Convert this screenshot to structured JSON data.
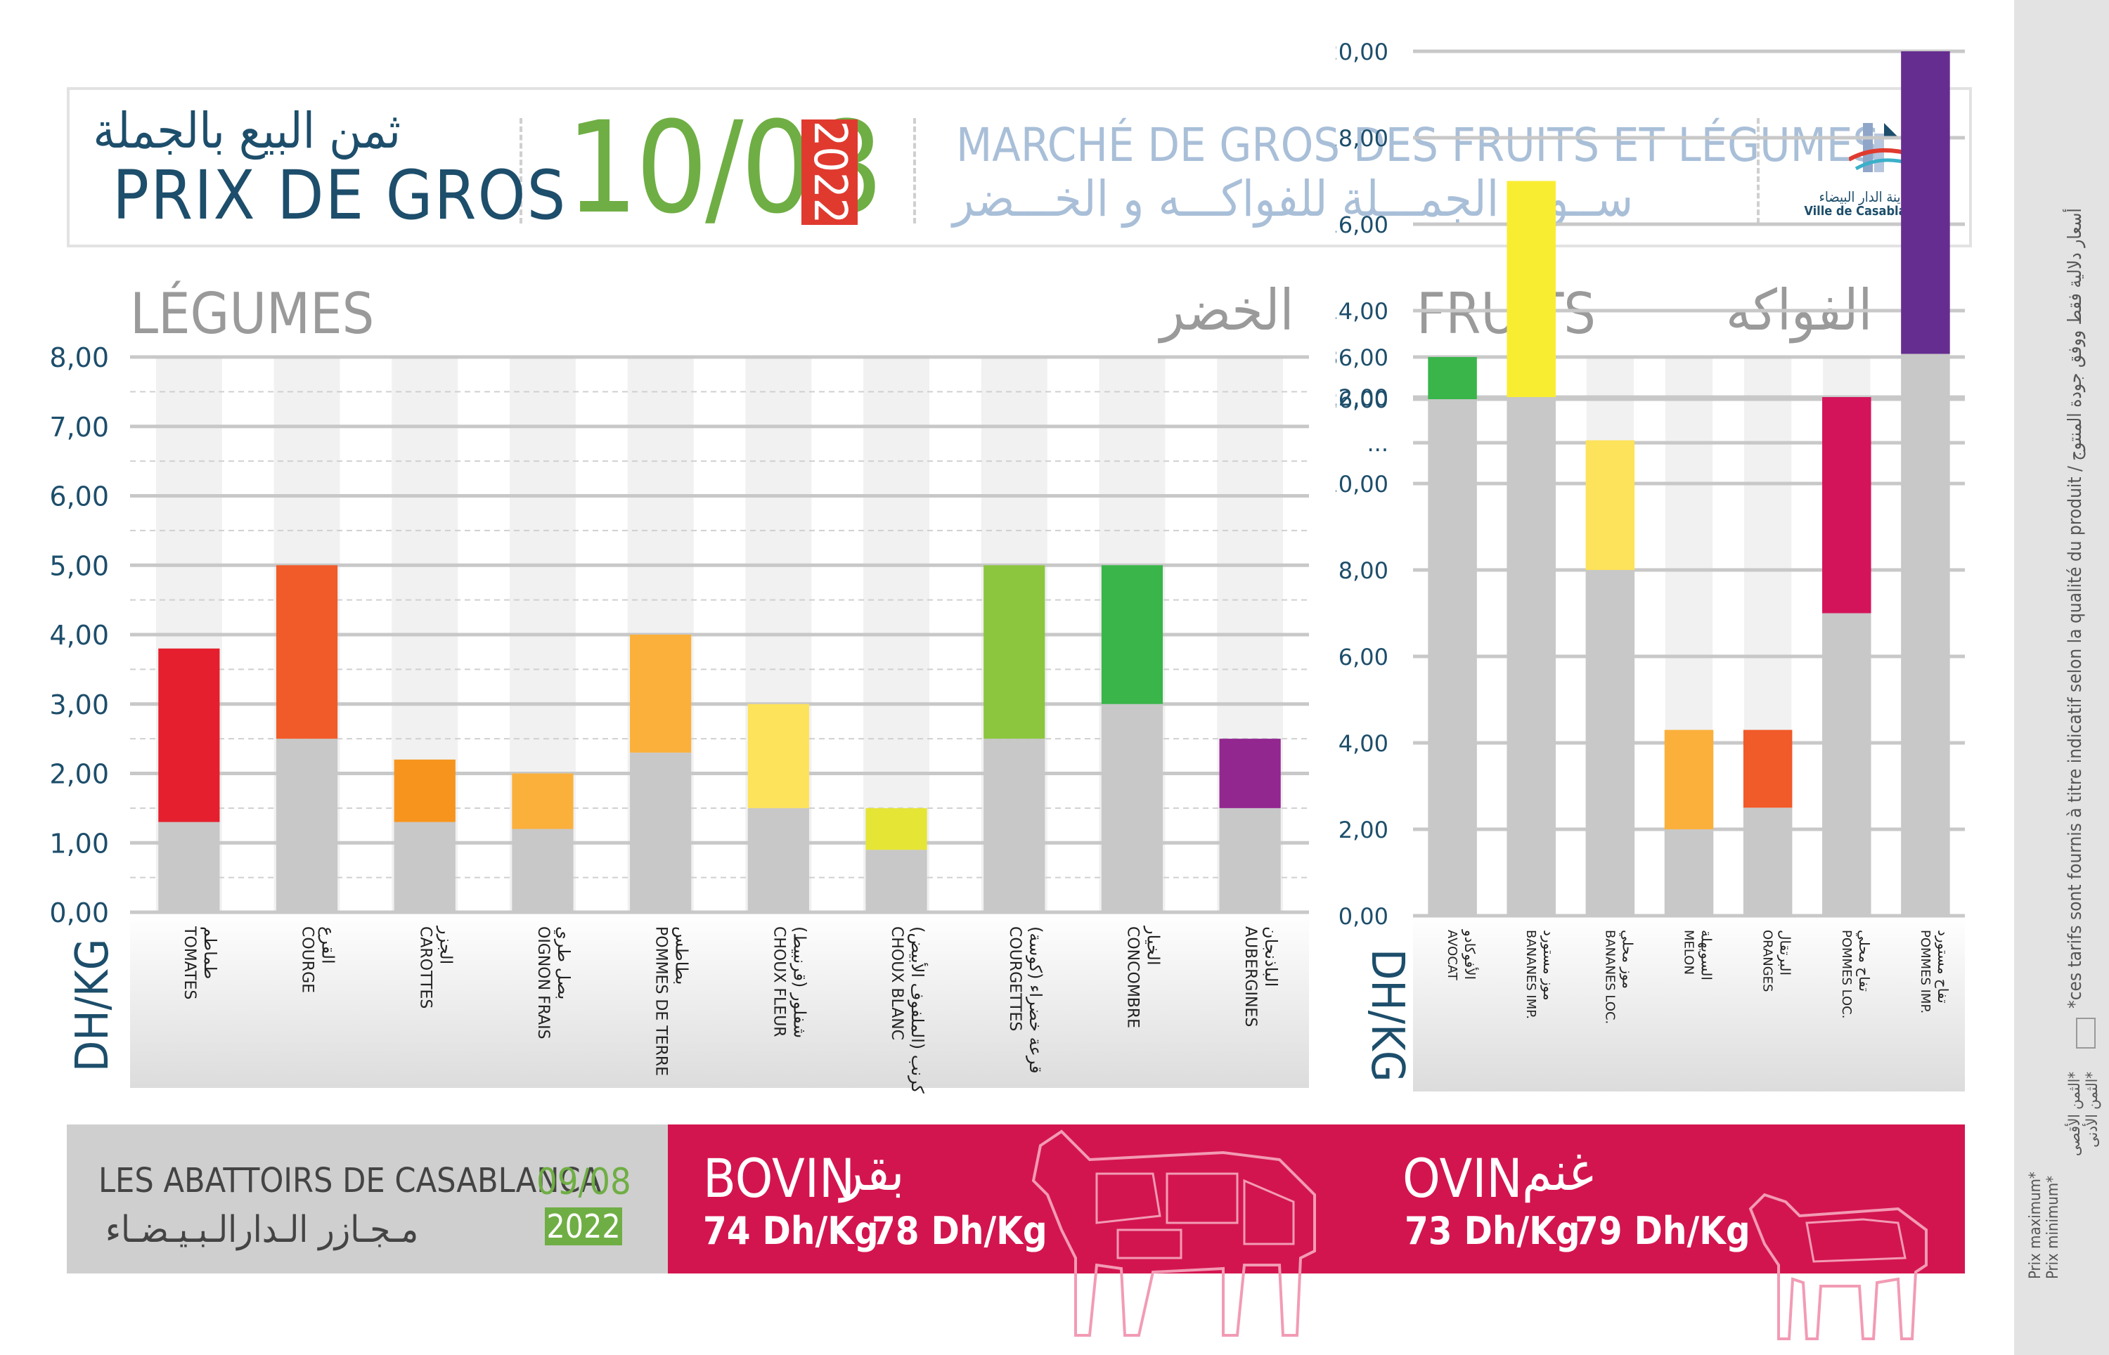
{
  "header": {
    "title_ar": "ثمن البيع بالجملة",
    "title_fr": "PRIX DE GROS",
    "date": "10/08",
    "year": "2022",
    "market_fr": "MARCHÉ DE GROS DES FRUITS ET LÉGUMES",
    "market_ar": "ســوق الجمـــلة للفواكـــه و الخـــضر",
    "logo_ar": "مدينة الدار البيضاء",
    "logo_fr": "Ville de Casablanca"
  },
  "legumes": {
    "title_fr": "LÉGUMES",
    "title_ar": "الخضر",
    "unit": "DH/KG"
  },
  "fruits": {
    "title_fr": "FRUITS",
    "title_ar": "الفواكه",
    "unit": "DH/KG"
  },
  "abattoirs": {
    "title_fr": "LES ABATTOIRS DE CASABLANCA",
    "title_ar": "مـجـازر الـدارالـبـيـضـاء",
    "date": "09/08",
    "year": "2022",
    "bovin": {
      "label_fr": "BOVIN",
      "label_ar": "بقر",
      "min": "74 Dh/Kg",
      "max": "78 Dh/Kg"
    },
    "ovin": {
      "label_fr": "OVIN",
      "label_ar": "غنم",
      "min": "73 Dh/Kg",
      "max": "79 Dh/Kg"
    }
  },
  "sidebar": {
    "note": "*ces tarifs sont fournis à titre indicatif selon la qualité du produit / أسعار دلالية فقط ووفق جودة المنتوج",
    "legend_max_fr": "Prix maximum*",
    "legend_max_ar": "*الثمن الأقصى",
    "legend_min_fr": "Prix minimum*",
    "legend_min_ar": "*الثمن الأدنى"
  },
  "colors": {
    "primary": "#1d4e6b",
    "green": "#6fae44",
    "red": "#e03a2f",
    "crimson": "#d3154f",
    "min_bar": "#c8c8c8"
  },
  "chart_data": [
    {
      "type": "bar",
      "name": "legumes",
      "yticks": [
        "0,00",
        "1,00",
        "2,00",
        "3,00",
        "4,00",
        "5,00",
        "6,00",
        "7,00",
        "8,00"
      ],
      "ylim": [
        0,
        8
      ],
      "categories": [
        {
          "fr": "TOMATES",
          "ar": "طماطم"
        },
        {
          "fr": "COURGE",
          "ar": "القرع"
        },
        {
          "fr": "CAROTTES",
          "ar": "الجزر"
        },
        {
          "fr": "OIGNON FRAIS",
          "ar": "بصل طري"
        },
        {
          "fr": "POMMES DE TERRE",
          "ar": "بطاطس"
        },
        {
          "fr": "CHOUX FLEUR",
          "ar": "شفلور (قرنبيط)"
        },
        {
          "fr": "CHOUX BLANC",
          "ar": "كرنب (الملفوف الأبيض)"
        },
        {
          "fr": "COURGETTES",
          "ar": "قرعة خضراء (كوسة)"
        },
        {
          "fr": "CONCOMBRE",
          "ar": "الخيار"
        },
        {
          "fr": "AUBERGINES",
          "ar": "الباذنجان"
        }
      ],
      "series": [
        {
          "name": "Prix minimum",
          "values": [
            1.3,
            2.5,
            1.3,
            1.2,
            2.3,
            1.5,
            0.9,
            2.5,
            3.0,
            1.5
          ]
        },
        {
          "name": "Prix maximum",
          "values": [
            3.8,
            5.0,
            2.2,
            2.0,
            4.0,
            3.0,
            1.5,
            5.0,
            5.0,
            2.5
          ]
        }
      ],
      "colors": [
        "#e51f2d",
        "#f15a29",
        "#f7941d",
        "#fbb03b",
        "#fbb03b",
        "#fde25b",
        "#e5e535",
        "#8cc63f",
        "#39b54a",
        "#92278f"
      ]
    },
    {
      "type": "bar",
      "name": "fruits",
      "yticks": [
        "0,00",
        "2,00",
        "4,00",
        "6,00",
        "8,00",
        "10,00",
        "12,00",
        "14,00",
        "16,00",
        "18,00",
        "20,00",
        "...",
        "26,00",
        "36,00"
      ],
      "ylim": [
        0,
        36
      ],
      "categories": [
        {
          "fr": "AVOCAT",
          "ar": "الأفوكادو"
        },
        {
          "fr": "BANANES IMP.",
          "ar": "موز مستورد"
        },
        {
          "fr": "BANANES LOC.",
          "ar": "موز محلي"
        },
        {
          "fr": "MELON",
          "ar": "السويهلة"
        },
        {
          "fr": "ORANGES",
          "ar": "البرتقال"
        },
        {
          "fr": "POMMES LOC.",
          "ar": "تفاح محلي"
        },
        {
          "fr": "POMMES IMP.",
          "ar": "تفاح مستورد"
        }
      ],
      "series": [
        {
          "name": "Prix minimum",
          "values": [
            26,
            12,
            8,
            2,
            2.5,
            7,
            13
          ]
        },
        {
          "name": "Prix maximum",
          "values": [
            36,
            17,
            11,
            4.3,
            4.3,
            12,
            20
          ]
        }
      ],
      "colors": [
        "#39b54a",
        "#f9ed32",
        "#fde25b",
        "#fbb03b",
        "#f15a29",
        "#d4145a",
        "#662d91"
      ]
    }
  ]
}
